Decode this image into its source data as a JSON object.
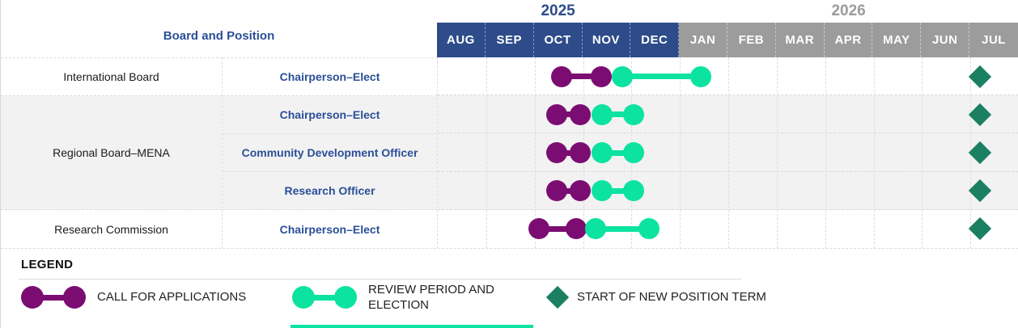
{
  "colors": {
    "header_blue": "#2e4c8a",
    "header_gray": "#9c9c9c",
    "text_blue": "#2a4f98",
    "call_purple": "#7b0d72",
    "review_green": "#0ce3a1",
    "term_teal": "#1b7f61",
    "row_shade": "#f2f2f2"
  },
  "chart_data": {
    "type": "timeline",
    "column_header": "Board and Position",
    "years": [
      {
        "label": "2025",
        "months": [
          "AUG",
          "SEP",
          "OCT",
          "NOV",
          "DEC"
        ]
      },
      {
        "label": "2026",
        "months": [
          "JAN",
          "FEB",
          "MAR",
          "APR",
          "MAY",
          "JUN",
          "JUL"
        ]
      }
    ],
    "axis_note": "marker positions in month units; 0 = start of AUG 2025, 12 = end of JUL 2026",
    "board_groups": [
      {
        "label": "International Board",
        "rows": 1,
        "shaded": false
      },
      {
        "label": "Regional Board–MENA",
        "rows": 3,
        "shaded": true
      },
      {
        "label": "Research Commission",
        "rows": 1,
        "shaded": false
      }
    ],
    "rows": [
      {
        "board": "International Board",
        "position": "Chairperson–Elect",
        "call_for_applications": [
          2.56,
          3.37
        ],
        "review_period_and_election": [
          3.81,
          5.44
        ],
        "start_of_new_position_term": 11.2
      },
      {
        "board": "Regional Board–MENA",
        "position": "Chairperson–Elect",
        "call_for_applications": [
          2.45,
          2.94
        ],
        "review_period_and_election": [
          3.4,
          4.04
        ],
        "start_of_new_position_term": 11.2
      },
      {
        "board": "Regional Board–MENA",
        "position": "Community Development Officer",
        "call_for_applications": [
          2.45,
          2.94
        ],
        "review_period_and_election": [
          3.4,
          4.04
        ],
        "start_of_new_position_term": 11.2
      },
      {
        "board": "Regional Board–MENA",
        "position": "Research Officer",
        "call_for_applications": [
          2.45,
          2.94
        ],
        "review_period_and_election": [
          3.4,
          4.04
        ],
        "start_of_new_position_term": 11.2
      },
      {
        "board": "Research Commission",
        "position": "Chairperson–Elect",
        "call_for_applications": [
          2.09,
          2.85
        ],
        "review_period_and_election": [
          3.26,
          4.36
        ],
        "start_of_new_position_term": 11.2
      }
    ],
    "legend": {
      "title": "LEGEND",
      "items": [
        {
          "marker": "dumbbell",
          "color": "call_purple",
          "label": "CALL FOR APPLICATIONS"
        },
        {
          "marker": "dumbbell",
          "color": "review_green",
          "label": "REVIEW PERIOD AND ELECTION"
        },
        {
          "marker": "diamond",
          "color": "term_teal",
          "label": "START OF NEW POSITION TERM"
        }
      ]
    }
  }
}
